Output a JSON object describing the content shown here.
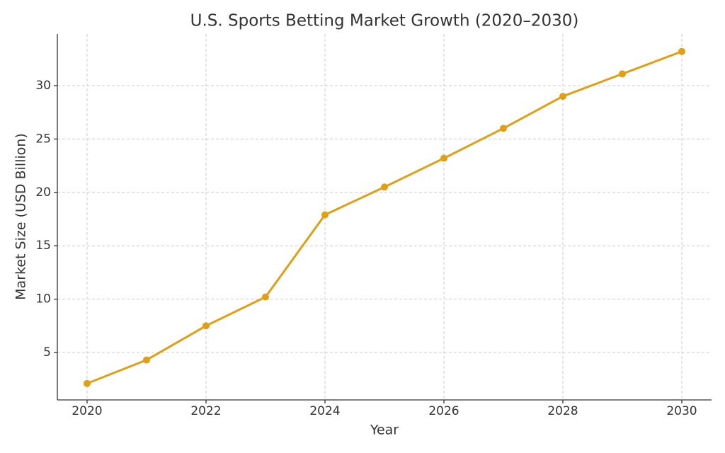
{
  "chart_data": {
    "type": "line",
    "title": "U.S. Sports Betting Market Growth (2020–2030)",
    "x_label": "Year",
    "y_label": "Market Size (USD Billion)",
    "x": [
      2020,
      2021,
      2022,
      2023,
      2024,
      2025,
      2026,
      2027,
      2028,
      2029,
      2030
    ],
    "series": [
      {
        "name": "Market Size",
        "color": "#e09f14",
        "values": [
          2.1,
          4.3,
          7.5,
          10.2,
          17.9,
          20.5,
          23.2,
          26.0,
          29.0,
          31.1,
          33.2
        ]
      }
    ],
    "xlim": [
      2019.5,
      2030.5
    ],
    "xticks": [
      2020,
      2022,
      2024,
      2026,
      2028,
      2030
    ],
    "ylim": [
      0.56,
      34.84
    ],
    "yticks": [
      5,
      10,
      15,
      20,
      25,
      30
    ],
    "grid": true
  }
}
